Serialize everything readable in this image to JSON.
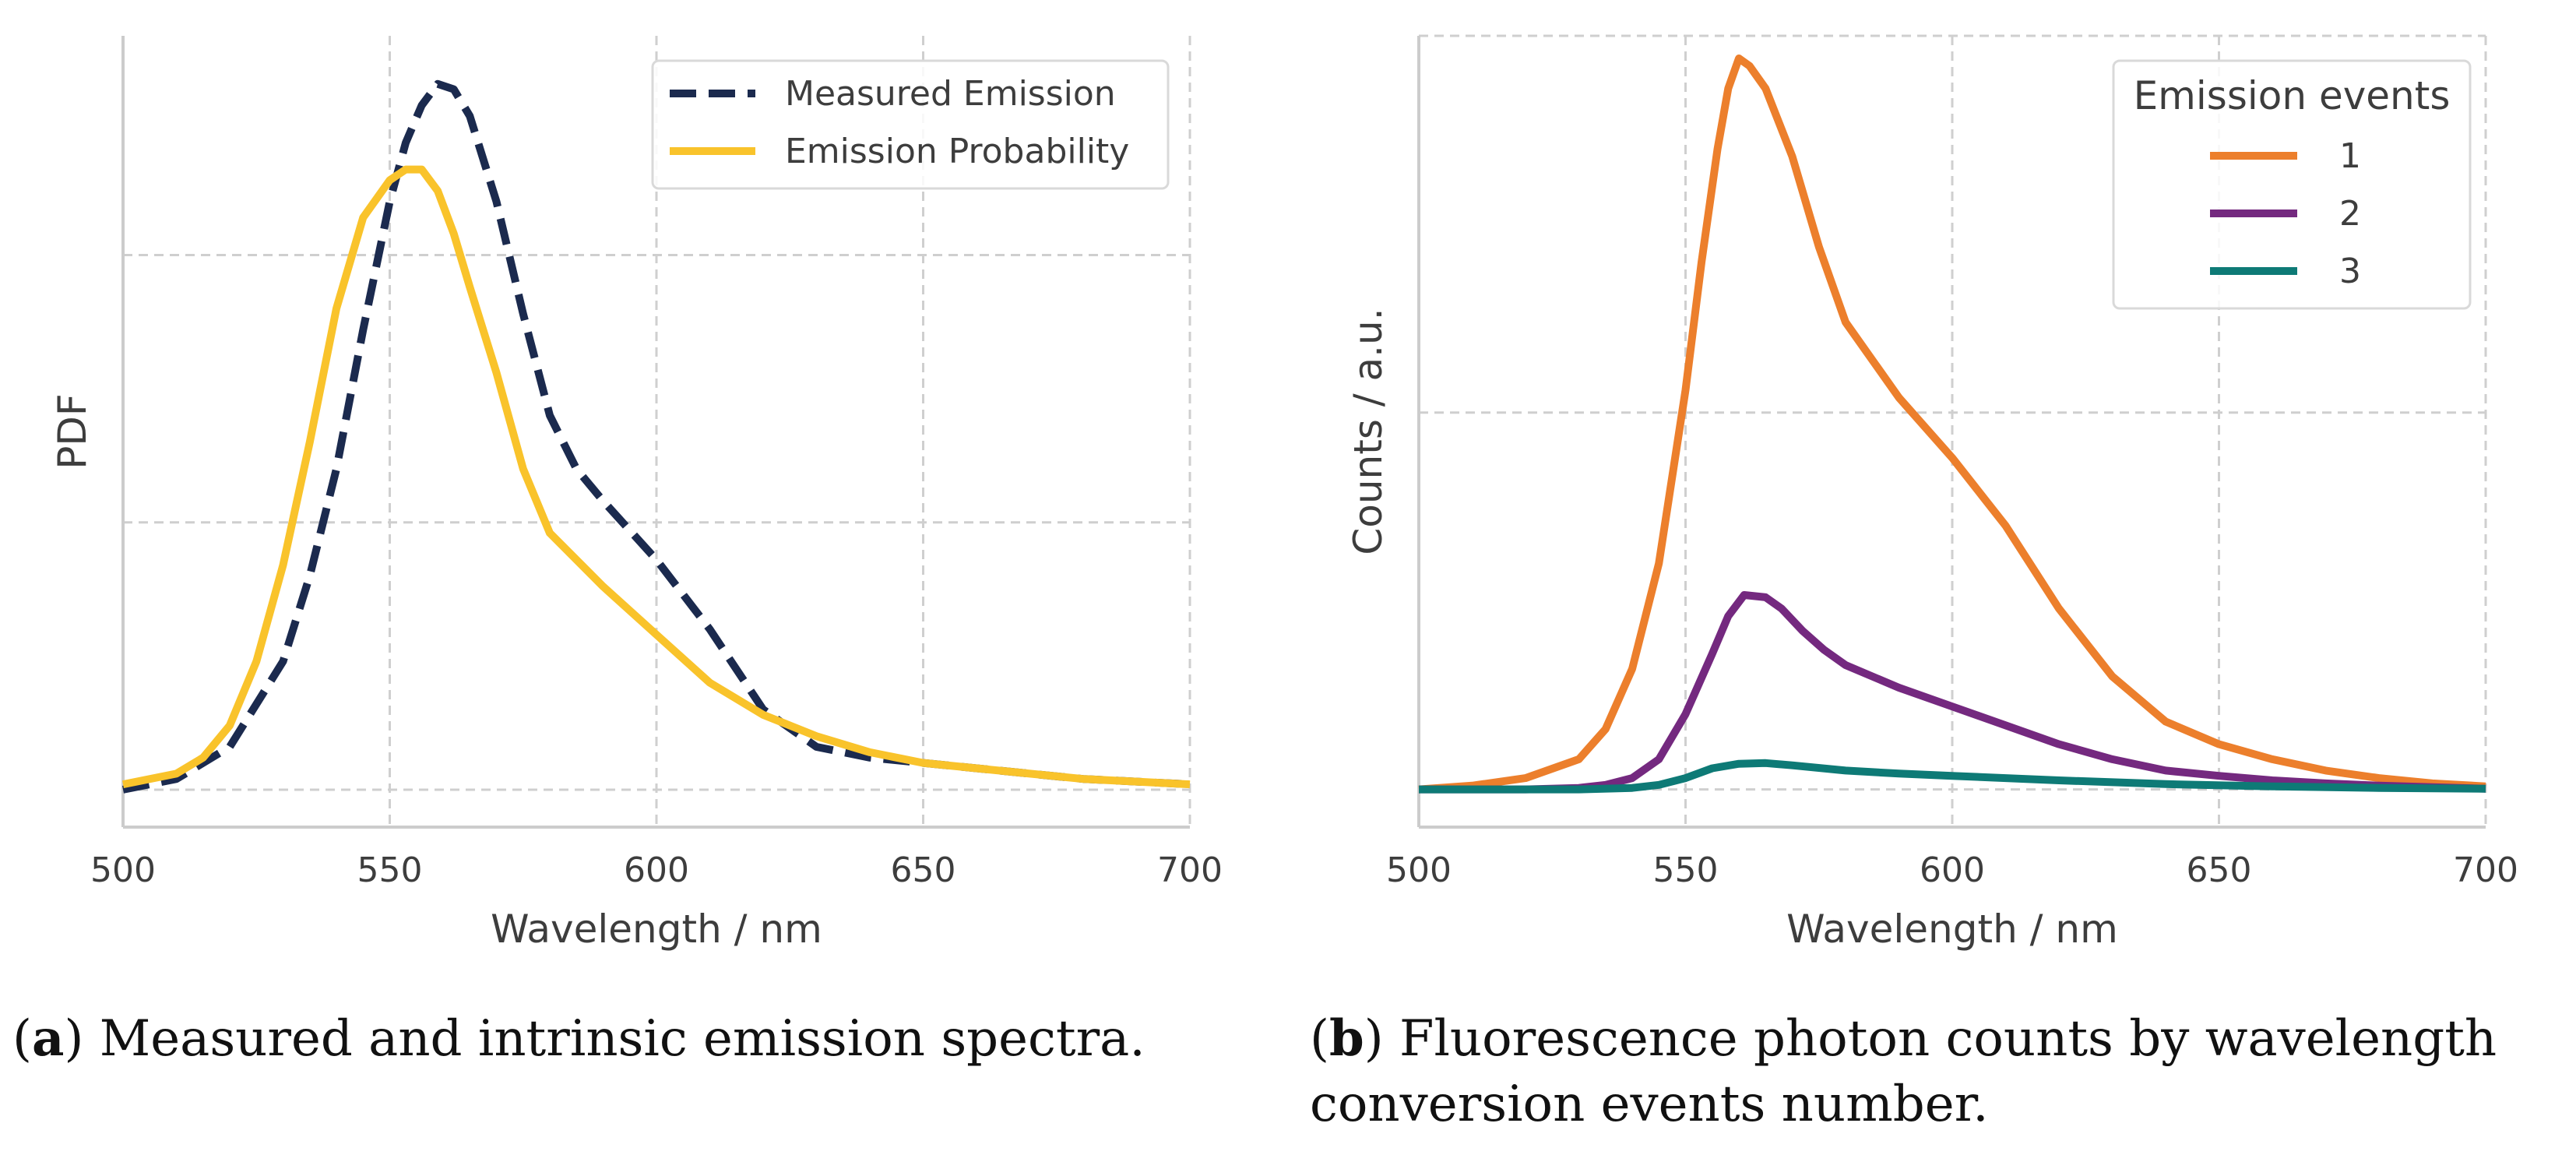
{
  "chart_data": [
    {
      "type": "line",
      "panel": "a",
      "xlabel": "Wavelength / nm",
      "ylabel": "PDF",
      "xlim": [
        500,
        700
      ],
      "ylim": [
        -0.007,
        0.141
      ],
      "xticks": [
        500,
        550,
        600,
        650,
        700
      ],
      "ygrid": [
        0,
        0.05,
        0.1
      ],
      "grid": true,
      "legend_position": "top-right",
      "series": [
        {
          "name": "Measured Emission",
          "color": "#1b2a4e",
          "style": "dashed",
          "x": [
            500,
            510,
            520,
            530,
            535,
            540,
            545,
            550,
            553,
            556,
            559,
            562,
            565,
            570,
            575,
            580,
            585,
            590,
            600,
            610,
            620,
            630,
            640,
            650,
            660,
            670,
            680,
            690,
            700
          ],
          "y": [
            0.0,
            0.002,
            0.008,
            0.024,
            0.04,
            0.06,
            0.086,
            0.11,
            0.121,
            0.128,
            0.132,
            0.131,
            0.126,
            0.11,
            0.089,
            0.07,
            0.06,
            0.054,
            0.043,
            0.03,
            0.015,
            0.008,
            0.006,
            0.005,
            0.004,
            0.003,
            0.002,
            0.0015,
            0.001
          ]
        },
        {
          "name": "Emission Probability",
          "color": "#f9c32b",
          "style": "solid",
          "x": [
            500,
            510,
            515,
            520,
            525,
            530,
            535,
            540,
            545,
            550,
            553,
            556,
            559,
            562,
            565,
            570,
            575,
            580,
            590,
            600,
            610,
            620,
            630,
            640,
            650,
            660,
            670,
            680,
            690,
            700
          ],
          "y": [
            0.001,
            0.003,
            0.006,
            0.012,
            0.024,
            0.042,
            0.065,
            0.09,
            0.107,
            0.114,
            0.116,
            0.116,
            0.112,
            0.104,
            0.094,
            0.078,
            0.06,
            0.048,
            0.038,
            0.029,
            0.02,
            0.014,
            0.01,
            0.007,
            0.005,
            0.004,
            0.003,
            0.002,
            0.0015,
            0.001
          ]
        }
      ]
    },
    {
      "type": "line",
      "panel": "b",
      "xlabel": "Wavelength / nm",
      "ylabel": "Counts / a.u.",
      "xlim": [
        500,
        700
      ],
      "ylim": [
        -0.05,
        1.0
      ],
      "xticks": [
        500,
        550,
        600,
        650,
        700
      ],
      "ygrid": [
        0,
        0.5,
        1.0
      ],
      "grid": true,
      "legend_position": "top-right",
      "legend_title": "Emission events",
      "series": [
        {
          "name": "1",
          "color": "#ec7f2c",
          "style": "solid",
          "x": [
            500,
            510,
            520,
            530,
            535,
            540,
            545,
            550,
            553,
            556,
            558,
            560,
            562,
            565,
            570,
            575,
            580,
            590,
            600,
            610,
            620,
            630,
            640,
            650,
            660,
            670,
            680,
            690,
            700
          ],
          "y": [
            0.0,
            0.005,
            0.015,
            0.04,
            0.08,
            0.16,
            0.3,
            0.53,
            0.7,
            0.85,
            0.93,
            0.97,
            0.96,
            0.93,
            0.84,
            0.72,
            0.62,
            0.52,
            0.44,
            0.35,
            0.24,
            0.15,
            0.09,
            0.06,
            0.04,
            0.025,
            0.015,
            0.008,
            0.004
          ]
        },
        {
          "name": "2",
          "color": "#74297f",
          "style": "solid",
          "x": [
            500,
            520,
            530,
            535,
            540,
            545,
            550,
            555,
            558,
            561,
            565,
            568,
            572,
            576,
            580,
            590,
            600,
            610,
            620,
            630,
            640,
            650,
            660,
            670,
            680,
            690,
            700
          ],
          "y": [
            0.0,
            0.0,
            0.002,
            0.006,
            0.015,
            0.04,
            0.1,
            0.18,
            0.23,
            0.258,
            0.255,
            0.24,
            0.21,
            0.185,
            0.165,
            0.135,
            0.11,
            0.085,
            0.06,
            0.04,
            0.025,
            0.018,
            0.012,
            0.008,
            0.005,
            0.003,
            0.001
          ]
        },
        {
          "name": "3",
          "color": "#0e7a76",
          "style": "solid",
          "x": [
            500,
            530,
            540,
            545,
            550,
            555,
            560,
            565,
            570,
            580,
            590,
            600,
            620,
            640,
            660,
            680,
            700
          ],
          "y": [
            0.0,
            0.0,
            0.002,
            0.006,
            0.015,
            0.028,
            0.034,
            0.035,
            0.032,
            0.025,
            0.021,
            0.018,
            0.012,
            0.007,
            0.004,
            0.002,
            0.001
          ]
        }
      ]
    }
  ],
  "captions": {
    "a_label": "a",
    "a_text": "Measured and intrinsic emission spectra.",
    "b_label": "b",
    "b_line1": "Fluorescence photon counts by wavelength",
    "b_line2": "conversion events number."
  }
}
